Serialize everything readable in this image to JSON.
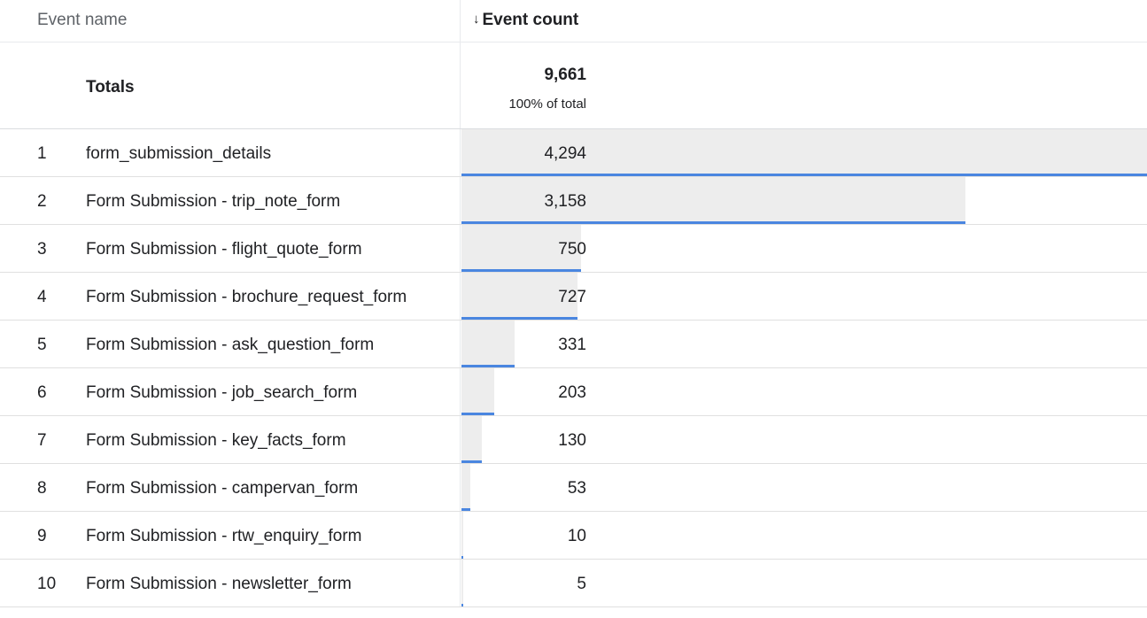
{
  "header": {
    "event_name_label": "Event name",
    "event_count_label": "Event count",
    "sort_arrow": "↓"
  },
  "totals": {
    "label": "Totals",
    "value": "9,661",
    "percent": "100% of total"
  },
  "max_value": 4294,
  "colors": {
    "bar_fill": "#ededed",
    "bar_line": "#4a86e0",
    "divider": "#e0e0e0"
  },
  "rows": [
    {
      "rank": "1",
      "name": "form_submission_details",
      "value": "4,294",
      "count": 4294
    },
    {
      "rank": "2",
      "name": "Form Submission - trip_note_form",
      "value": "3,158",
      "count": 3158
    },
    {
      "rank": "3",
      "name": "Form Submission - flight_quote_form",
      "value": "750",
      "count": 750
    },
    {
      "rank": "4",
      "name": "Form Submission - brochure_request_form",
      "value": "727",
      "count": 727
    },
    {
      "rank": "5",
      "name": "Form Submission - ask_question_form",
      "value": "331",
      "count": 331
    },
    {
      "rank": "6",
      "name": "Form Submission - job_search_form",
      "value": "203",
      "count": 203
    },
    {
      "rank": "7",
      "name": "Form Submission - key_facts_form",
      "value": "130",
      "count": 130
    },
    {
      "rank": "8",
      "name": "Form Submission - campervan_form",
      "value": "53",
      "count": 53
    },
    {
      "rank": "9",
      "name": "Form Submission - rtw_enquiry_form",
      "value": "10",
      "count": 10
    },
    {
      "rank": "10",
      "name": "Form Submission - newsletter_form",
      "value": "5",
      "count": 5
    }
  ]
}
